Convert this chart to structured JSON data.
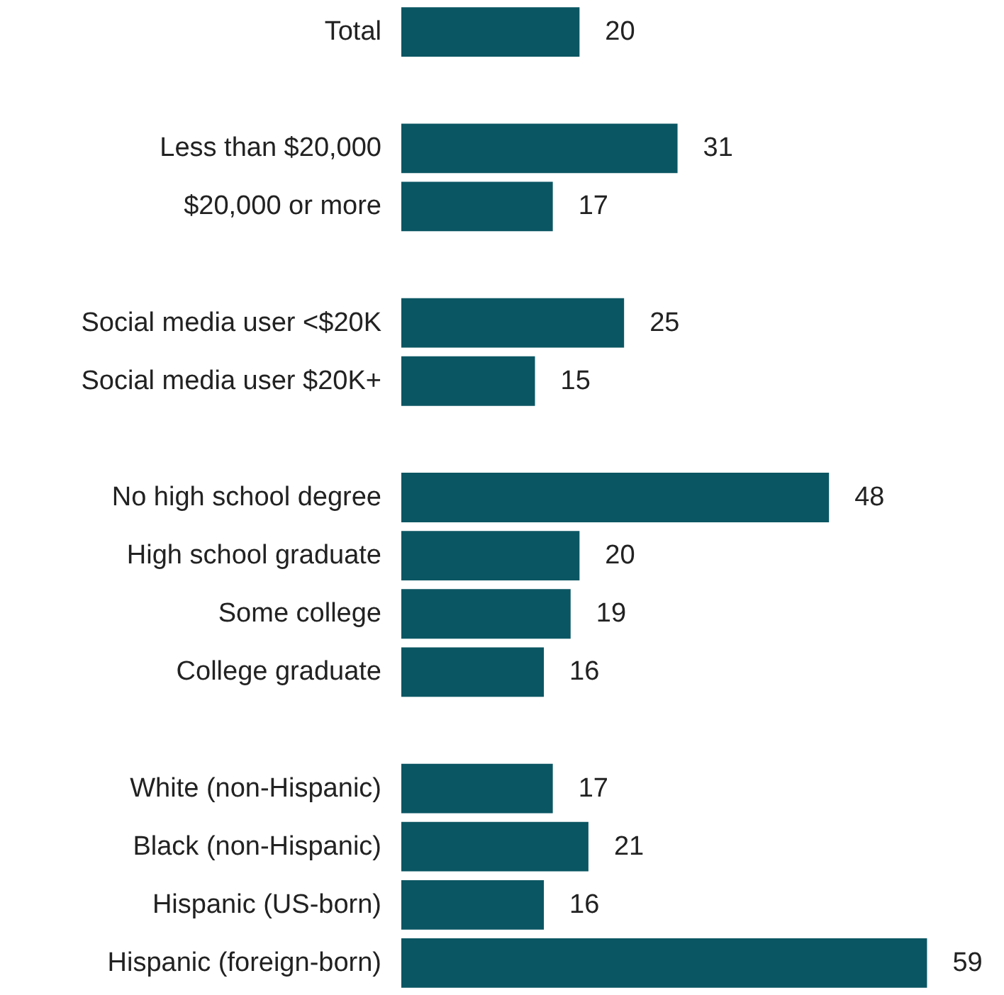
{
  "chart_data": {
    "type": "bar",
    "orientation": "horizontal",
    "data_labels": true,
    "color": "#0b5663",
    "categories": [
      "Total",
      null,
      "Less than $20,000",
      "$20,000 or more",
      null,
      "Social media user <$20K",
      "Social media user $20K+",
      null,
      "No high school degree",
      "High school graduate",
      "Some college",
      "College graduate",
      null,
      "White (non-Hispanic)",
      "Black (non-Hispanic)",
      "Hispanic (US-born)",
      "Hispanic (foreign-born)"
    ],
    "values": [
      20,
      null,
      31,
      17,
      null,
      25,
      15,
      null,
      48,
      20,
      19,
      16,
      null,
      17,
      21,
      16,
      59
    ]
  }
}
